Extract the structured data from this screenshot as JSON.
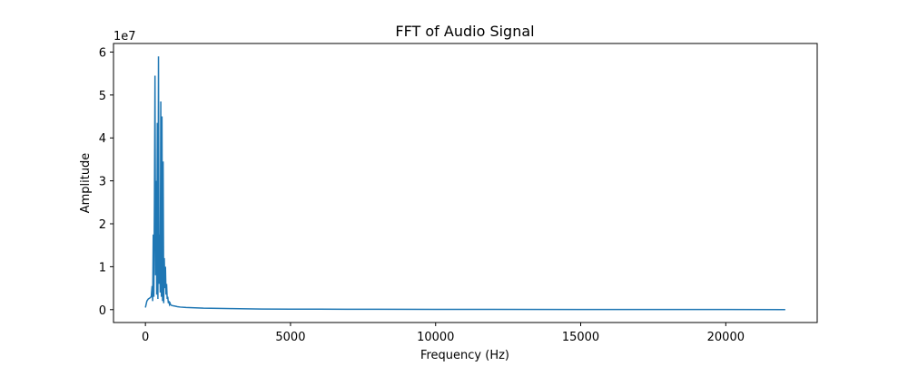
{
  "chart_data": {
    "type": "line",
    "title": "FFT of Audio Signal",
    "xlabel": "Frequency (Hz)",
    "ylabel": "Amplitude",
    "y_scale_label": "1e7",
    "xlim": [
      -1100,
      23150
    ],
    "ylim": [
      -3000000,
      62000000
    ],
    "x_ticks": [
      0,
      5000,
      10000,
      15000,
      20000
    ],
    "x_tick_labels": [
      "0",
      "5000",
      "10000",
      "15000",
      "20000"
    ],
    "y_ticks": [
      0,
      10000000,
      20000000,
      30000000,
      40000000,
      50000000,
      60000000
    ],
    "y_tick_labels": [
      "0",
      "1",
      "2",
      "3",
      "4",
      "5",
      "6"
    ],
    "grid": false,
    "series_color": "#1f77b4",
    "series": [
      {
        "x": [
          0,
          50,
          100,
          150,
          200,
          230,
          250,
          270,
          290,
          310,
          330,
          350,
          370,
          390,
          410,
          430,
          450,
          470,
          490,
          510,
          530,
          550,
          570,
          590,
          610,
          630,
          650,
          670,
          690,
          710,
          730,
          750,
          770,
          790,
          810,
          830,
          850,
          870,
          900,
          950,
          1000,
          1100,
          1200,
          1400,
          1600,
          1800,
          2000,
          2500,
          3000,
          3500,
          4000,
          5000,
          6000,
          8000,
          10000,
          12000,
          15000,
          18000,
          20000,
          22050
        ],
        "y": [
          500000,
          2000000,
          2500000,
          2700000,
          3000000,
          5500000,
          2000000,
          17500000,
          3000000,
          24500000,
          54500000,
          8000000,
          30000000,
          3500000,
          43500000,
          2500000,
          59000000,
          6000000,
          17500000,
          4000000,
          48500000,
          3000000,
          45000000,
          2000000,
          34500000,
          1500000,
          12000000,
          5000000,
          10000000,
          3500000,
          6000000,
          2500000,
          3000000,
          1500000,
          2000000,
          1200000,
          1500000,
          1100000,
          1000000,
          900000,
          850000,
          700000,
          600000,
          500000,
          450000,
          400000,
          350000,
          300000,
          250000,
          200000,
          150000,
          120000,
          100000,
          80000,
          60000,
          50000,
          40000,
          30000,
          25000,
          20000
        ]
      }
    ]
  }
}
